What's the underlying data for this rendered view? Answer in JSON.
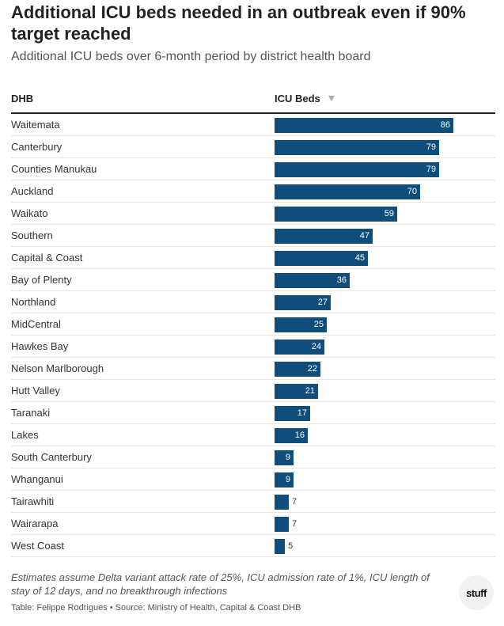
{
  "header": {
    "title": "Additional ICU beds needed in an outbreak even if 90% target reached",
    "subtitle": "Additional ICU beds over 6-month period by district health board"
  },
  "table": {
    "col_dhb": "DHB",
    "col_icu": "ICU Beds",
    "sort_icon": "sort-descending-icon"
  },
  "chart_data": {
    "type": "bar",
    "orientation": "horizontal",
    "title": "Additional ICU beds needed in an outbreak even if 90% target reached",
    "subtitle": "Additional ICU beds over 6-month period by district health board",
    "column_headers": [
      "DHB",
      "ICU Beds"
    ],
    "categories": [
      "Waitemata",
      "Canterbury",
      "Counties Manukau",
      "Auckland",
      "Waikato",
      "Southern",
      "Capital & Coast",
      "Bay of Plenty",
      "Northland",
      "MidCentral",
      "Hawkes Bay",
      "Nelson Marlborough",
      "Hutt Valley",
      "Taranaki",
      "Lakes",
      "South Canterbury",
      "Whanganui",
      "Tairawhiti",
      "Wairarapa",
      "West Coast"
    ],
    "values": [
      86,
      79,
      79,
      70,
      59,
      47,
      45,
      36,
      27,
      25,
      24,
      22,
      21,
      17,
      16,
      9,
      9,
      7,
      7,
      5
    ],
    "xlim": [
      0,
      86
    ],
    "bar_color": "#0e4d7c",
    "sorted_by": "ICU Beds",
    "sort_order": "descending"
  },
  "footer": {
    "notes": "Estimates assume Delta variant attack rate of 25%, ICU admission rate of 1%, ICU length of stay of 12 days, and no breakthrough infections",
    "source": "Table: Felippe Rodrigues • Source: Ministry of Health, Capital & Coast DHB",
    "logo_text": "stuff"
  }
}
